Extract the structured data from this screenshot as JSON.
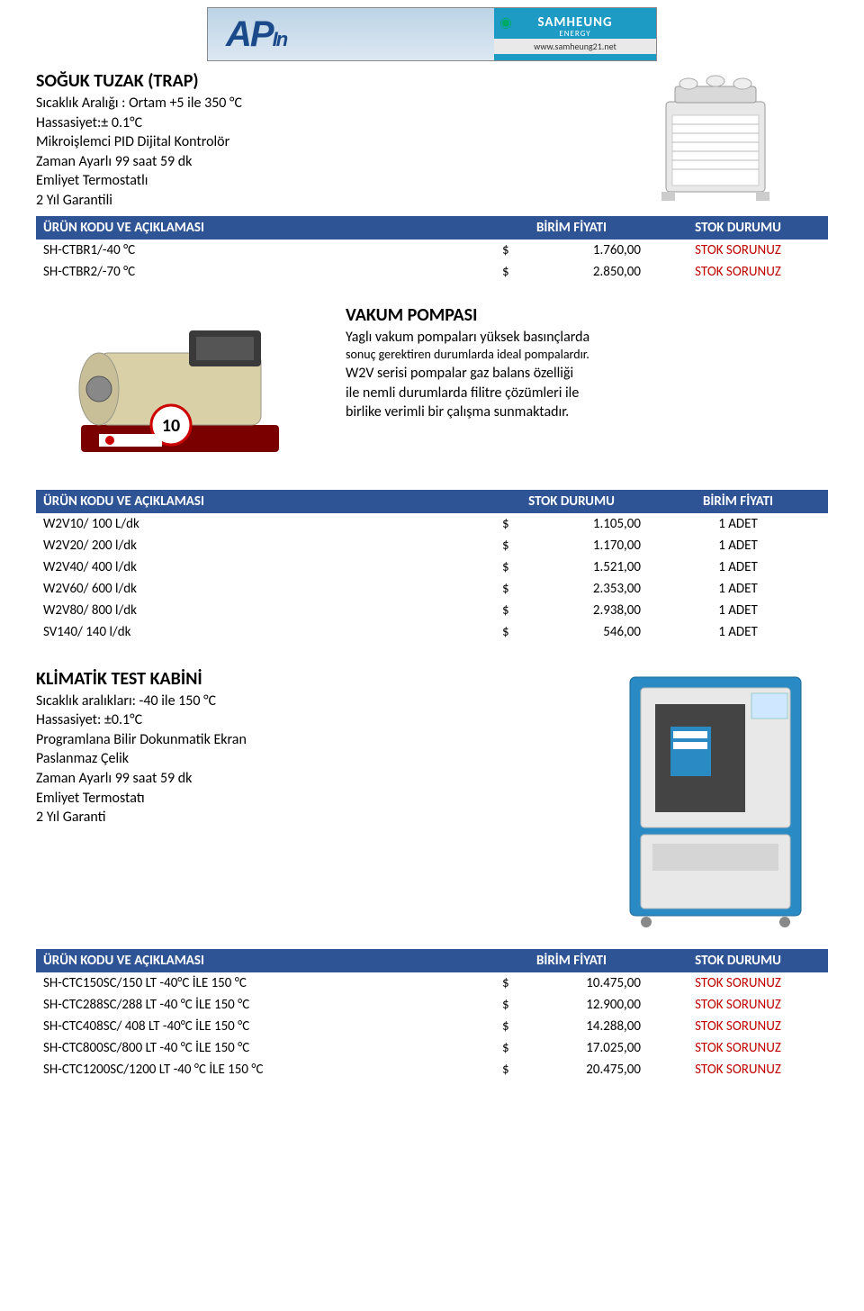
{
  "banner": {
    "logo_text": "AP",
    "logo_sub": "In",
    "brand": "SAMHEUNG",
    "brand_sub": "ENERGY",
    "url": "www.samheung21.net"
  },
  "section1": {
    "title": "SOĞUK TUZAK (TRAP)",
    "lines": [
      "Sıcaklık Aralığı : Ortam +5 ile 350 °C",
      "Hassasiyet:± 0.1°C",
      "Mikroişlemci PID Dijital Kontrolör",
      "Zaman Ayarlı 99 saat 59 dk",
      "Emliyet Termostatlı",
      "2 Yıl Garantili"
    ],
    "table": {
      "headers": [
        "ÜRÜN KODU VE AÇIKLAMASI",
        "BİRİM FİYATI",
        "STOK DURUMU"
      ],
      "rows": [
        {
          "code": "SH-CTBR1/-40 °C",
          "cur": "$",
          "price": "1.760,00",
          "status": "STOK SORUNUZ"
        },
        {
          "code": "SH-CTBR2/-70 °C",
          "cur": "$",
          "price": "2.850,00",
          "status": "STOK SORUNUZ"
        }
      ]
    }
  },
  "section2": {
    "title": "VAKUM POMPASI",
    "lines": [
      "Yaglı vakum pompaları yüksek basınçlarda",
      "sonuç gerektiren durumlarda ideal pompalardır.",
      "W2V serisi pompalar gaz balans özelliği",
      "ile nemli durumlarda filitre çözümleri ile",
      "birlike verimli bir çalışma sunmaktadır."
    ],
    "table": {
      "headers": [
        "ÜRÜN KODU VE AÇIKLAMASI",
        "STOK DURUMU",
        "BİRİM FİYATI"
      ],
      "rows": [
        {
          "code": "W2V10/ 100 L/dk",
          "cur": "$",
          "price": "1.105,00",
          "status": "1 ADET"
        },
        {
          "code": "W2V20/  200 l/dk",
          "cur": "$",
          "price": "1.170,00",
          "status": "1 ADET"
        },
        {
          "code": "W2V40/  400 l/dk",
          "cur": "$",
          "price": "1.521,00",
          "status": "1 ADET"
        },
        {
          "code": "W2V60/  600 l/dk",
          "cur": "$",
          "price": "2.353,00",
          "status": "1 ADET"
        },
        {
          "code": "W2V80/  800 l/dk",
          "cur": "$",
          "price": "2.938,00",
          "status": "1 ADET"
        },
        {
          "code": "SV140/   140 l/dk",
          "cur": "$",
          "price": "546,00",
          "status": "1 ADET"
        }
      ]
    }
  },
  "section3": {
    "title": "KLİMATİK TEST KABİNİ",
    "lines": [
      "Sıcaklık aralıkları: -40 ile 150 °C",
      "Hassasiyet: ±0.1°C",
      "Programlana Bilir Dokunmatik Ekran",
      "Paslanmaz Çelik",
      "Zaman Ayarlı 99 saat 59 dk",
      "Emliyet Termostatı",
      "2 Yıl Garanti"
    ],
    "table": {
      "headers": [
        "ÜRÜN KODU VE AÇIKLAMASI",
        "BİRİM FİYATI",
        "STOK DURUMU"
      ],
      "rows": [
        {
          "code": "SH-CTC150SC/150 LT -40°C İLE 150 °C",
          "cur": "$",
          "price": "10.475,00",
          "status": "STOK SORUNUZ"
        },
        {
          "code": "SH-CTC288SC/288 LT -40 °C İLE 150 °C",
          "cur": "$",
          "price": "12.900,00",
          "status": "STOK SORUNUZ"
        },
        {
          "code": "SH-CTC408SC/ 408 LT -40°C İLE 150 °C",
          "cur": "$",
          "price": "14.288,00",
          "status": "STOK SORUNUZ"
        },
        {
          "code": "SH-CTC800SC/800 LT -40 °C İLE 150 °C",
          "cur": "$",
          "price": "17.025,00",
          "status": "STOK SORUNUZ"
        },
        {
          "code": "SH-CTC1200SC/1200 LT -40 °C İLE 150 °C",
          "cur": "$",
          "price": "20.475,00",
          "status": "STOK SORUNUZ"
        }
      ]
    }
  },
  "colors": {
    "header_bg": "#2f5496",
    "header_fg": "#ffffff",
    "status_red": "#c00000",
    "banner_blue": "#1e9bc4"
  }
}
